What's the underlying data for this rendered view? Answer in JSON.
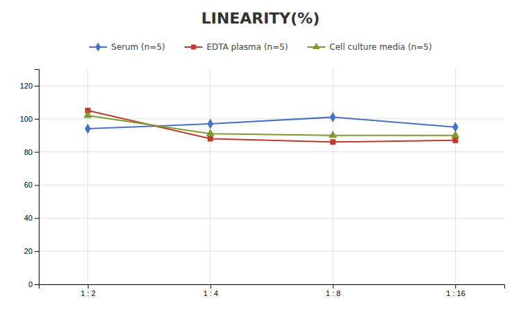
{
  "chart_data": {
    "type": "line",
    "title": "LINEARITY(%)",
    "categories": [
      "1 : 2",
      "1 : 4",
      "1 : 8",
      "1 : 16"
    ],
    "series": [
      {
        "name": "Serum (n=5)",
        "color": "#4472C4",
        "marker": "diamond",
        "values": [
          94,
          97,
          101,
          95
        ]
      },
      {
        "name": "EDTA plasma (n=5)",
        "color": "#C0392B",
        "marker": "square",
        "values": [
          105,
          88,
          86,
          87
        ]
      },
      {
        "name": "Cell culture media (n=5)",
        "color": "#7F9A2E",
        "marker": "triangle",
        "values": [
          102,
          91,
          90,
          90
        ]
      }
    ],
    "ylim": [
      0,
      130
    ],
    "yticks": [
      0,
      20,
      40,
      60,
      80,
      100,
      120
    ],
    "grid": true,
    "legend": "top"
  }
}
